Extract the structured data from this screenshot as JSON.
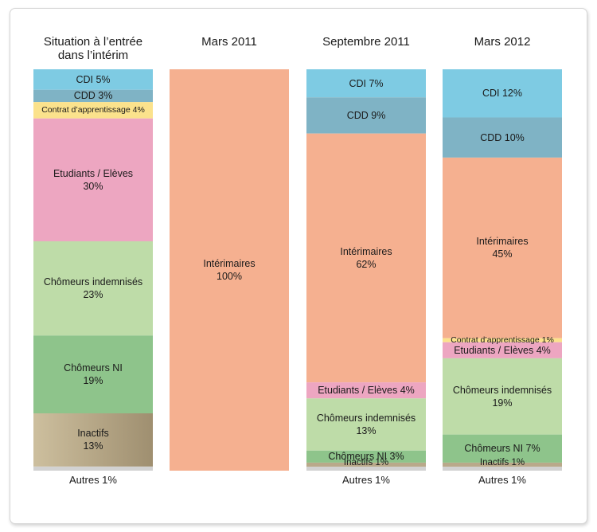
{
  "chart_data": {
    "type": "bar",
    "stacked": true,
    "normalized": true,
    "unit": "%",
    "categories": [
      "Situation à l’entrée\ndans l’intérim",
      "Mars 2011",
      "Septembre 2011",
      "Mars 2012"
    ],
    "columns": [
      {
        "segments": [
          {
            "name": "CDI",
            "value": 5,
            "label_text": "CDI  5%",
            "color": "#7ecbe3"
          },
          {
            "name": "CDD",
            "value": 3,
            "label_text": "CDD  3%",
            "color": "#7fb3c5"
          },
          {
            "name": "Contrat d’apprentissage",
            "value": 4,
            "label_text": "Contrat d’apprentissage 4%",
            "color": "#fbe28c"
          },
          {
            "name": "Etudiants / Elèves",
            "value": 30,
            "label_text": "Etudiants / Elèves\n30%",
            "color": "#eda6c1"
          },
          {
            "name": "Chômeurs indemnisés",
            "value": 23,
            "label_text": "Chômeurs indemnisés\n23%",
            "color": "#bedca8"
          },
          {
            "name": "Chômeurs NI",
            "value": 19,
            "label_text": "Chômeurs NI\n19%",
            "color": "#8ec48b"
          },
          {
            "name": "Inactifs",
            "value": 13,
            "label_text": "Inactifs\n13%",
            "color": "#b9a98a"
          },
          {
            "name": "Autres",
            "value": 1,
            "label_text": "",
            "color": "#d2d2d2"
          }
        ],
        "footer": "Autres  1%"
      },
      {
        "segments": [
          {
            "name": "Intérimaires",
            "value": 100,
            "label_text": "Intérimaires\n100%",
            "color": "#f5b090"
          }
        ],
        "footer": ""
      },
      {
        "segments": [
          {
            "name": "CDI",
            "value": 7,
            "label_text": "CDI  7%",
            "color": "#7ecbe3"
          },
          {
            "name": "CDD",
            "value": 9,
            "label_text": "CDD  9%",
            "color": "#7fb3c5"
          },
          {
            "name": "Intérimaires",
            "value": 62,
            "label_text": "Intérimaires\n62%",
            "color": "#f5b090"
          },
          {
            "name": "Etudiants / Elèves",
            "value": 4,
            "label_text": "Etudiants / Elèves    4%",
            "color": "#eda6c1"
          },
          {
            "name": "Chômeurs indemnisés",
            "value": 13,
            "label_text": "Chômeurs indemnisés\n13%",
            "color": "#bedca8"
          },
          {
            "name": "Chômeurs NI",
            "value": 3,
            "label_text": "Chômeurs NI   3%",
            "color": "#8ec48b"
          },
          {
            "name": "Inactifs",
            "value": 1,
            "label_text": "Inactifs  1%",
            "color": "#b9a98a"
          },
          {
            "name": "Autres",
            "value": 1,
            "label_text": "",
            "color": "#d2d2d2"
          }
        ],
        "footer": "Autres  1%"
      },
      {
        "segments": [
          {
            "name": "CDI",
            "value": 12,
            "label_text": "CDI  12%",
            "color": "#7ecbe3"
          },
          {
            "name": "CDD",
            "value": 10,
            "label_text": "CDD  10%",
            "color": "#7fb3c5"
          },
          {
            "name": "Intérimaires",
            "value": 45,
            "label_text": "Intérimaires\n45%",
            "color": "#f5b090"
          },
          {
            "name": "Contrat d’apprentissage",
            "value": 1,
            "label_text": "Contrat d’apprentissage 1%",
            "color": "#fbe28c"
          },
          {
            "name": "Etudiants / Elèves",
            "value": 4,
            "label_text": "Etudiants / Elèves 4%",
            "color": "#eda6c1"
          },
          {
            "name": "Chômeurs indemnisés",
            "value": 19,
            "label_text": "Chômeurs indemnisés\n19%",
            "color": "#bedca8"
          },
          {
            "name": "Chômeurs NI",
            "value": 7,
            "label_text": "Chômeurs NI   7%",
            "color": "#8ec48b"
          },
          {
            "name": "Inactifs",
            "value": 1,
            "label_text": "Inactifs  1%",
            "color": "#b9a98a"
          },
          {
            "name": "Autres",
            "value": 1,
            "label_text": "",
            "color": "#d2d2d2"
          }
        ],
        "footer": "Autres  1%"
      }
    ]
  }
}
